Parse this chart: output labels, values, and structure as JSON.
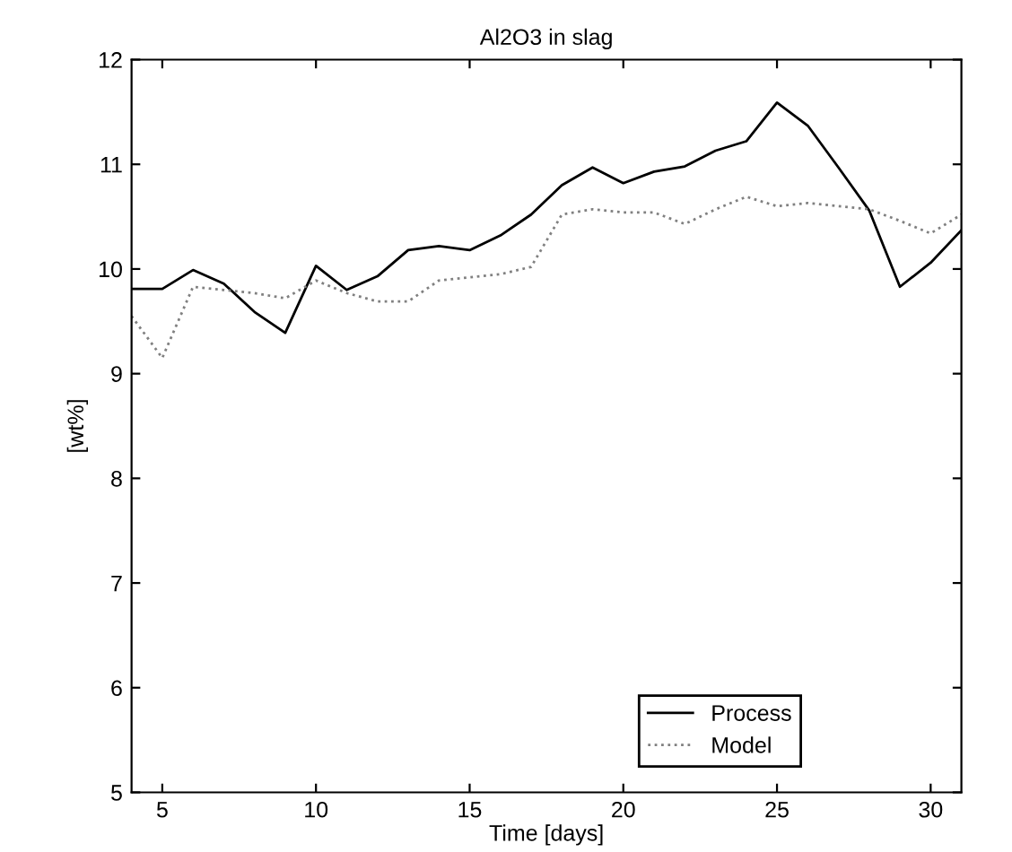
{
  "chart_data": {
    "type": "line",
    "title": "Al2O3 in slag",
    "xlabel": "Time [days]",
    "ylabel": "[wt%]",
    "x": [
      4,
      5,
      6,
      7,
      8,
      9,
      10,
      11,
      12,
      13,
      14,
      15,
      16,
      17,
      18,
      19,
      20,
      21,
      22,
      23,
      24,
      25,
      26,
      27,
      28,
      29,
      30,
      31
    ],
    "series": [
      {
        "name": "Process",
        "color": "#000000",
        "line_style": "solid",
        "values": [
          9.81,
          9.81,
          9.99,
          9.86,
          9.59,
          9.39,
          10.03,
          9.8,
          9.93,
          10.18,
          10.22,
          10.18,
          10.32,
          10.52,
          10.8,
          10.97,
          10.82,
          10.93,
          10.98,
          11.13,
          11.22,
          11.59,
          11.37,
          10.97,
          10.56,
          9.83,
          10.06,
          10.37
        ]
      },
      {
        "name": "Model",
        "color": "#808080",
        "line_style": "dotted",
        "values": [
          9.55,
          9.15,
          9.83,
          9.8,
          9.77,
          9.72,
          9.89,
          9.77,
          9.69,
          9.69,
          9.89,
          9.92,
          9.95,
          10.02,
          10.52,
          10.57,
          10.54,
          10.54,
          10.43,
          10.57,
          10.69,
          10.6,
          10.63,
          10.6,
          10.57,
          10.46,
          10.34,
          10.52
        ]
      }
    ],
    "xlim": [
      4,
      31
    ],
    "ylim": [
      5,
      12
    ],
    "xticks": [
      5,
      10,
      15,
      20,
      25,
      30
    ],
    "yticks": [
      5,
      6,
      7,
      8,
      9,
      10,
      11,
      12
    ],
    "grid": false,
    "legend": "bottom right"
  }
}
